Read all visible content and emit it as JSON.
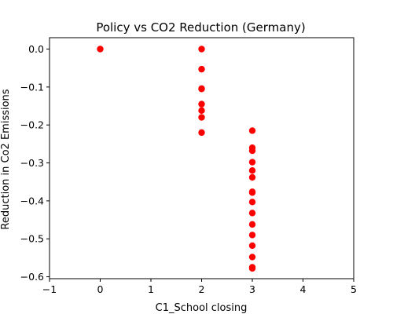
{
  "chart_data": {
    "type": "scatter",
    "title": "Policy vs CO2 Reduction (Germany)",
    "xlabel": "C1_School closing",
    "ylabel": "Reduction in Co2 Emissions",
    "xlim": [
      -1,
      5
    ],
    "ylim": [
      -0.605,
      0.03
    ],
    "xticks": [
      -1,
      0,
      1,
      2,
      3,
      4,
      5
    ],
    "yticks": [
      0.0,
      -0.1,
      -0.2,
      -0.3,
      -0.4,
      -0.5,
      -0.6
    ],
    "xtick_labels": [
      "−1",
      "0",
      "1",
      "2",
      "3",
      "4",
      "5"
    ],
    "ytick_labels": [
      "0.0",
      "−0.1",
      "−0.2",
      "−0.3",
      "−0.4",
      "−0.5",
      "−0.6"
    ],
    "grid": false,
    "marker_color": "#ff0000",
    "series": [
      {
        "points": [
          [
            0,
            0.0
          ],
          [
            2,
            0.0
          ],
          [
            2,
            -0.053
          ],
          [
            2,
            -0.104
          ],
          [
            2,
            -0.105
          ],
          [
            2,
            -0.145
          ],
          [
            2,
            -0.162
          ],
          [
            2,
            -0.18
          ],
          [
            2,
            -0.22
          ],
          [
            3,
            -0.215
          ],
          [
            3,
            -0.26
          ],
          [
            3,
            -0.268
          ],
          [
            3,
            -0.298
          ],
          [
            3,
            -0.32
          ],
          [
            3,
            -0.338
          ],
          [
            3,
            -0.376
          ],
          [
            3,
            -0.378
          ],
          [
            3,
            -0.403
          ],
          [
            3,
            -0.432
          ],
          [
            3,
            -0.462
          ],
          [
            3,
            -0.49
          ],
          [
            3,
            -0.518
          ],
          [
            3,
            -0.548
          ],
          [
            3,
            -0.575
          ],
          [
            3,
            -0.578
          ]
        ]
      }
    ]
  }
}
